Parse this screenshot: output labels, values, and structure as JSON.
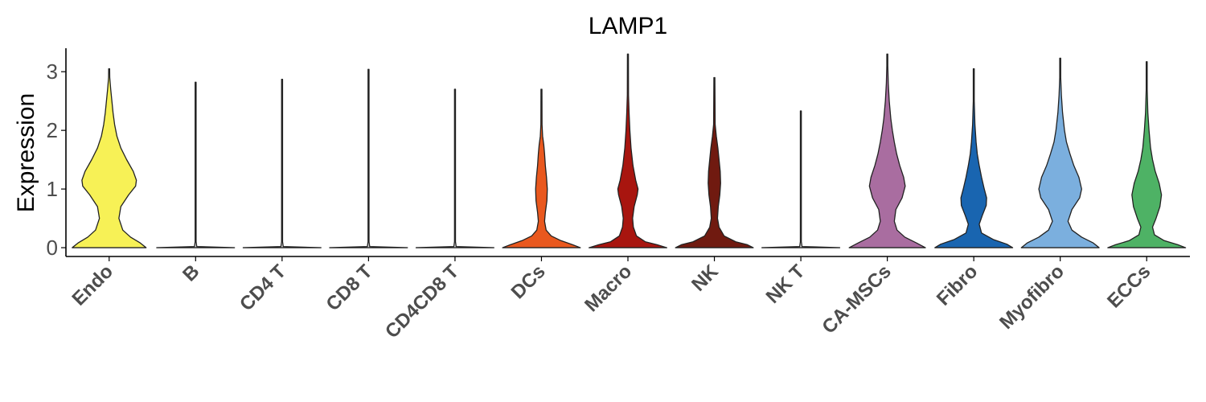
{
  "chart_data": {
    "type": "violin",
    "title": "LAMP1",
    "xlabel": "",
    "ylabel": "Expression",
    "ylim": [
      -0.15,
      3.4
    ],
    "yticks": [
      0,
      1,
      2,
      3
    ],
    "grid": false,
    "legend": "none",
    "categories": [
      "Endo",
      "B",
      "CD4 T",
      "CD8 T",
      "CD4CD8 T",
      "DCs",
      "Macro",
      "NK",
      "NK T",
      "CA-MSCs",
      "Fibro",
      "Myofibro",
      "ECCs"
    ],
    "colors": [
      "#F7F156",
      "#D9D9D9",
      "#D9D9D9",
      "#D9D9D9",
      "#D9D9D9",
      "#E9581E",
      "#A8150F",
      "#701A10",
      "#D9D9D9",
      "#A96DA0",
      "#1965B0",
      "#7BAFDE",
      "#4EB265"
    ],
    "series": [
      {
        "category": "Endo",
        "max": 3.05,
        "density": [
          [
            0,
            0.95
          ],
          [
            0.08,
            0.8
          ],
          [
            0.18,
            0.55
          ],
          [
            0.3,
            0.35
          ],
          [
            0.5,
            0.25
          ],
          [
            0.7,
            0.3
          ],
          [
            0.9,
            0.5
          ],
          [
            1.05,
            0.68
          ],
          [
            1.15,
            0.7
          ],
          [
            1.3,
            0.62
          ],
          [
            1.5,
            0.45
          ],
          [
            1.7,
            0.3
          ],
          [
            1.9,
            0.2
          ],
          [
            2.1,
            0.14
          ],
          [
            2.3,
            0.1
          ],
          [
            2.5,
            0.07
          ],
          [
            2.7,
            0.04
          ],
          [
            2.9,
            0.015
          ],
          [
            3.05,
            0
          ]
        ]
      },
      {
        "category": "B",
        "max": 2.82,
        "density": [
          [
            0,
            1
          ],
          [
            0.02,
            0.03
          ],
          [
            0.1,
            0.012
          ],
          [
            2.82,
            0.006
          ]
        ]
      },
      {
        "category": "CD4 T",
        "max": 2.87,
        "density": [
          [
            0,
            1
          ],
          [
            0.02,
            0.03
          ],
          [
            0.1,
            0.012
          ],
          [
            2.87,
            0.006
          ]
        ]
      },
      {
        "category": "CD8 T",
        "max": 3.04,
        "density": [
          [
            0,
            1
          ],
          [
            0.02,
            0.03
          ],
          [
            0.1,
            0.012
          ],
          [
            3.04,
            0.006
          ]
        ]
      },
      {
        "category": "CD4CD8 T",
        "max": 2.7,
        "density": [
          [
            0,
            1
          ],
          [
            0.02,
            0.03
          ],
          [
            0.1,
            0.012
          ],
          [
            2.7,
            0.006
          ]
        ]
      },
      {
        "category": "DCs",
        "max": 2.7,
        "density": [
          [
            0,
            1
          ],
          [
            0.05,
            0.8
          ],
          [
            0.12,
            0.5
          ],
          [
            0.2,
            0.25
          ],
          [
            0.3,
            0.12
          ],
          [
            0.45,
            0.08
          ],
          [
            0.6,
            0.1
          ],
          [
            0.8,
            0.14
          ],
          [
            1.0,
            0.15
          ],
          [
            1.2,
            0.13
          ],
          [
            1.4,
            0.1
          ],
          [
            1.6,
            0.08
          ],
          [
            1.75,
            0.06
          ],
          [
            1.9,
            0.03
          ],
          [
            2.1,
            0.015
          ],
          [
            2.7,
            0.006
          ]
        ]
      },
      {
        "category": "Macro",
        "max": 3.3,
        "density": [
          [
            0,
            1
          ],
          [
            0.05,
            0.75
          ],
          [
            0.1,
            0.45
          ],
          [
            0.2,
            0.22
          ],
          [
            0.35,
            0.14
          ],
          [
            0.5,
            0.12
          ],
          [
            0.7,
            0.16
          ],
          [
            0.9,
            0.24
          ],
          [
            1.0,
            0.26
          ],
          [
            1.15,
            0.2
          ],
          [
            1.4,
            0.13
          ],
          [
            1.7,
            0.08
          ],
          [
            2.0,
            0.05
          ],
          [
            2.3,
            0.03
          ],
          [
            2.6,
            0.015
          ],
          [
            3.3,
            0.005
          ]
        ]
      },
      {
        "category": "NK",
        "max": 2.9,
        "density": [
          [
            0,
            1
          ],
          [
            0.05,
            0.85
          ],
          [
            0.1,
            0.55
          ],
          [
            0.2,
            0.25
          ],
          [
            0.35,
            0.12
          ],
          [
            0.5,
            0.08
          ],
          [
            0.7,
            0.1
          ],
          [
            0.9,
            0.14
          ],
          [
            1.1,
            0.16
          ],
          [
            1.3,
            0.15
          ],
          [
            1.5,
            0.12
          ],
          [
            1.7,
            0.09
          ],
          [
            1.9,
            0.05
          ],
          [
            2.1,
            0.02
          ],
          [
            2.9,
            0.005
          ]
        ]
      },
      {
        "category": "NK T",
        "max": 2.33,
        "density": [
          [
            0,
            1
          ],
          [
            0.02,
            0.03
          ],
          [
            0.1,
            0.012
          ],
          [
            2.33,
            0.006
          ]
        ]
      },
      {
        "category": "CA-MSCs",
        "max": 3.3,
        "density": [
          [
            0,
            0.98
          ],
          [
            0.08,
            0.75
          ],
          [
            0.18,
            0.45
          ],
          [
            0.3,
            0.25
          ],
          [
            0.45,
            0.18
          ],
          [
            0.65,
            0.22
          ],
          [
            0.85,
            0.38
          ],
          [
            1.05,
            0.46
          ],
          [
            1.2,
            0.42
          ],
          [
            1.4,
            0.32
          ],
          [
            1.6,
            0.24
          ],
          [
            1.8,
            0.18
          ],
          [
            2.0,
            0.13
          ],
          [
            2.2,
            0.09
          ],
          [
            2.5,
            0.05
          ],
          [
            2.8,
            0.025
          ],
          [
            3.1,
            0.01
          ],
          [
            3.3,
            0
          ]
        ]
      },
      {
        "category": "Fibro",
        "max": 3.05,
        "density": [
          [
            0,
            1
          ],
          [
            0.06,
            0.85
          ],
          [
            0.14,
            0.5
          ],
          [
            0.25,
            0.2
          ],
          [
            0.4,
            0.14
          ],
          [
            0.55,
            0.22
          ],
          [
            0.72,
            0.32
          ],
          [
            0.85,
            0.33
          ],
          [
            1.0,
            0.27
          ],
          [
            1.2,
            0.2
          ],
          [
            1.4,
            0.14
          ],
          [
            1.6,
            0.09
          ],
          [
            1.8,
            0.06
          ],
          [
            2.1,
            0.03
          ],
          [
            2.5,
            0.012
          ],
          [
            3.05,
            0
          ]
        ]
      },
      {
        "category": "Myofibro",
        "max": 3.23,
        "density": [
          [
            0,
            1
          ],
          [
            0.08,
            0.85
          ],
          [
            0.18,
            0.55
          ],
          [
            0.3,
            0.3
          ],
          [
            0.45,
            0.2
          ],
          [
            0.65,
            0.3
          ],
          [
            0.85,
            0.5
          ],
          [
            1.0,
            0.55
          ],
          [
            1.2,
            0.48
          ],
          [
            1.4,
            0.35
          ],
          [
            1.6,
            0.25
          ],
          [
            1.8,
            0.16
          ],
          [
            2.0,
            0.11
          ],
          [
            2.3,
            0.06
          ],
          [
            2.6,
            0.03
          ],
          [
            2.9,
            0.012
          ],
          [
            3.23,
            0
          ]
        ]
      },
      {
        "category": "ECCs",
        "max": 3.17,
        "density": [
          [
            0,
            1
          ],
          [
            0.05,
            0.8
          ],
          [
            0.12,
            0.45
          ],
          [
            0.22,
            0.2
          ],
          [
            0.35,
            0.15
          ],
          [
            0.5,
            0.24
          ],
          [
            0.7,
            0.34
          ],
          [
            0.9,
            0.38
          ],
          [
            1.1,
            0.32
          ],
          [
            1.3,
            0.22
          ],
          [
            1.5,
            0.15
          ],
          [
            1.7,
            0.1
          ],
          [
            2.0,
            0.06
          ],
          [
            2.3,
            0.03
          ],
          [
            2.7,
            0.012
          ],
          [
            3.17,
            0
          ]
        ]
      }
    ]
  }
}
